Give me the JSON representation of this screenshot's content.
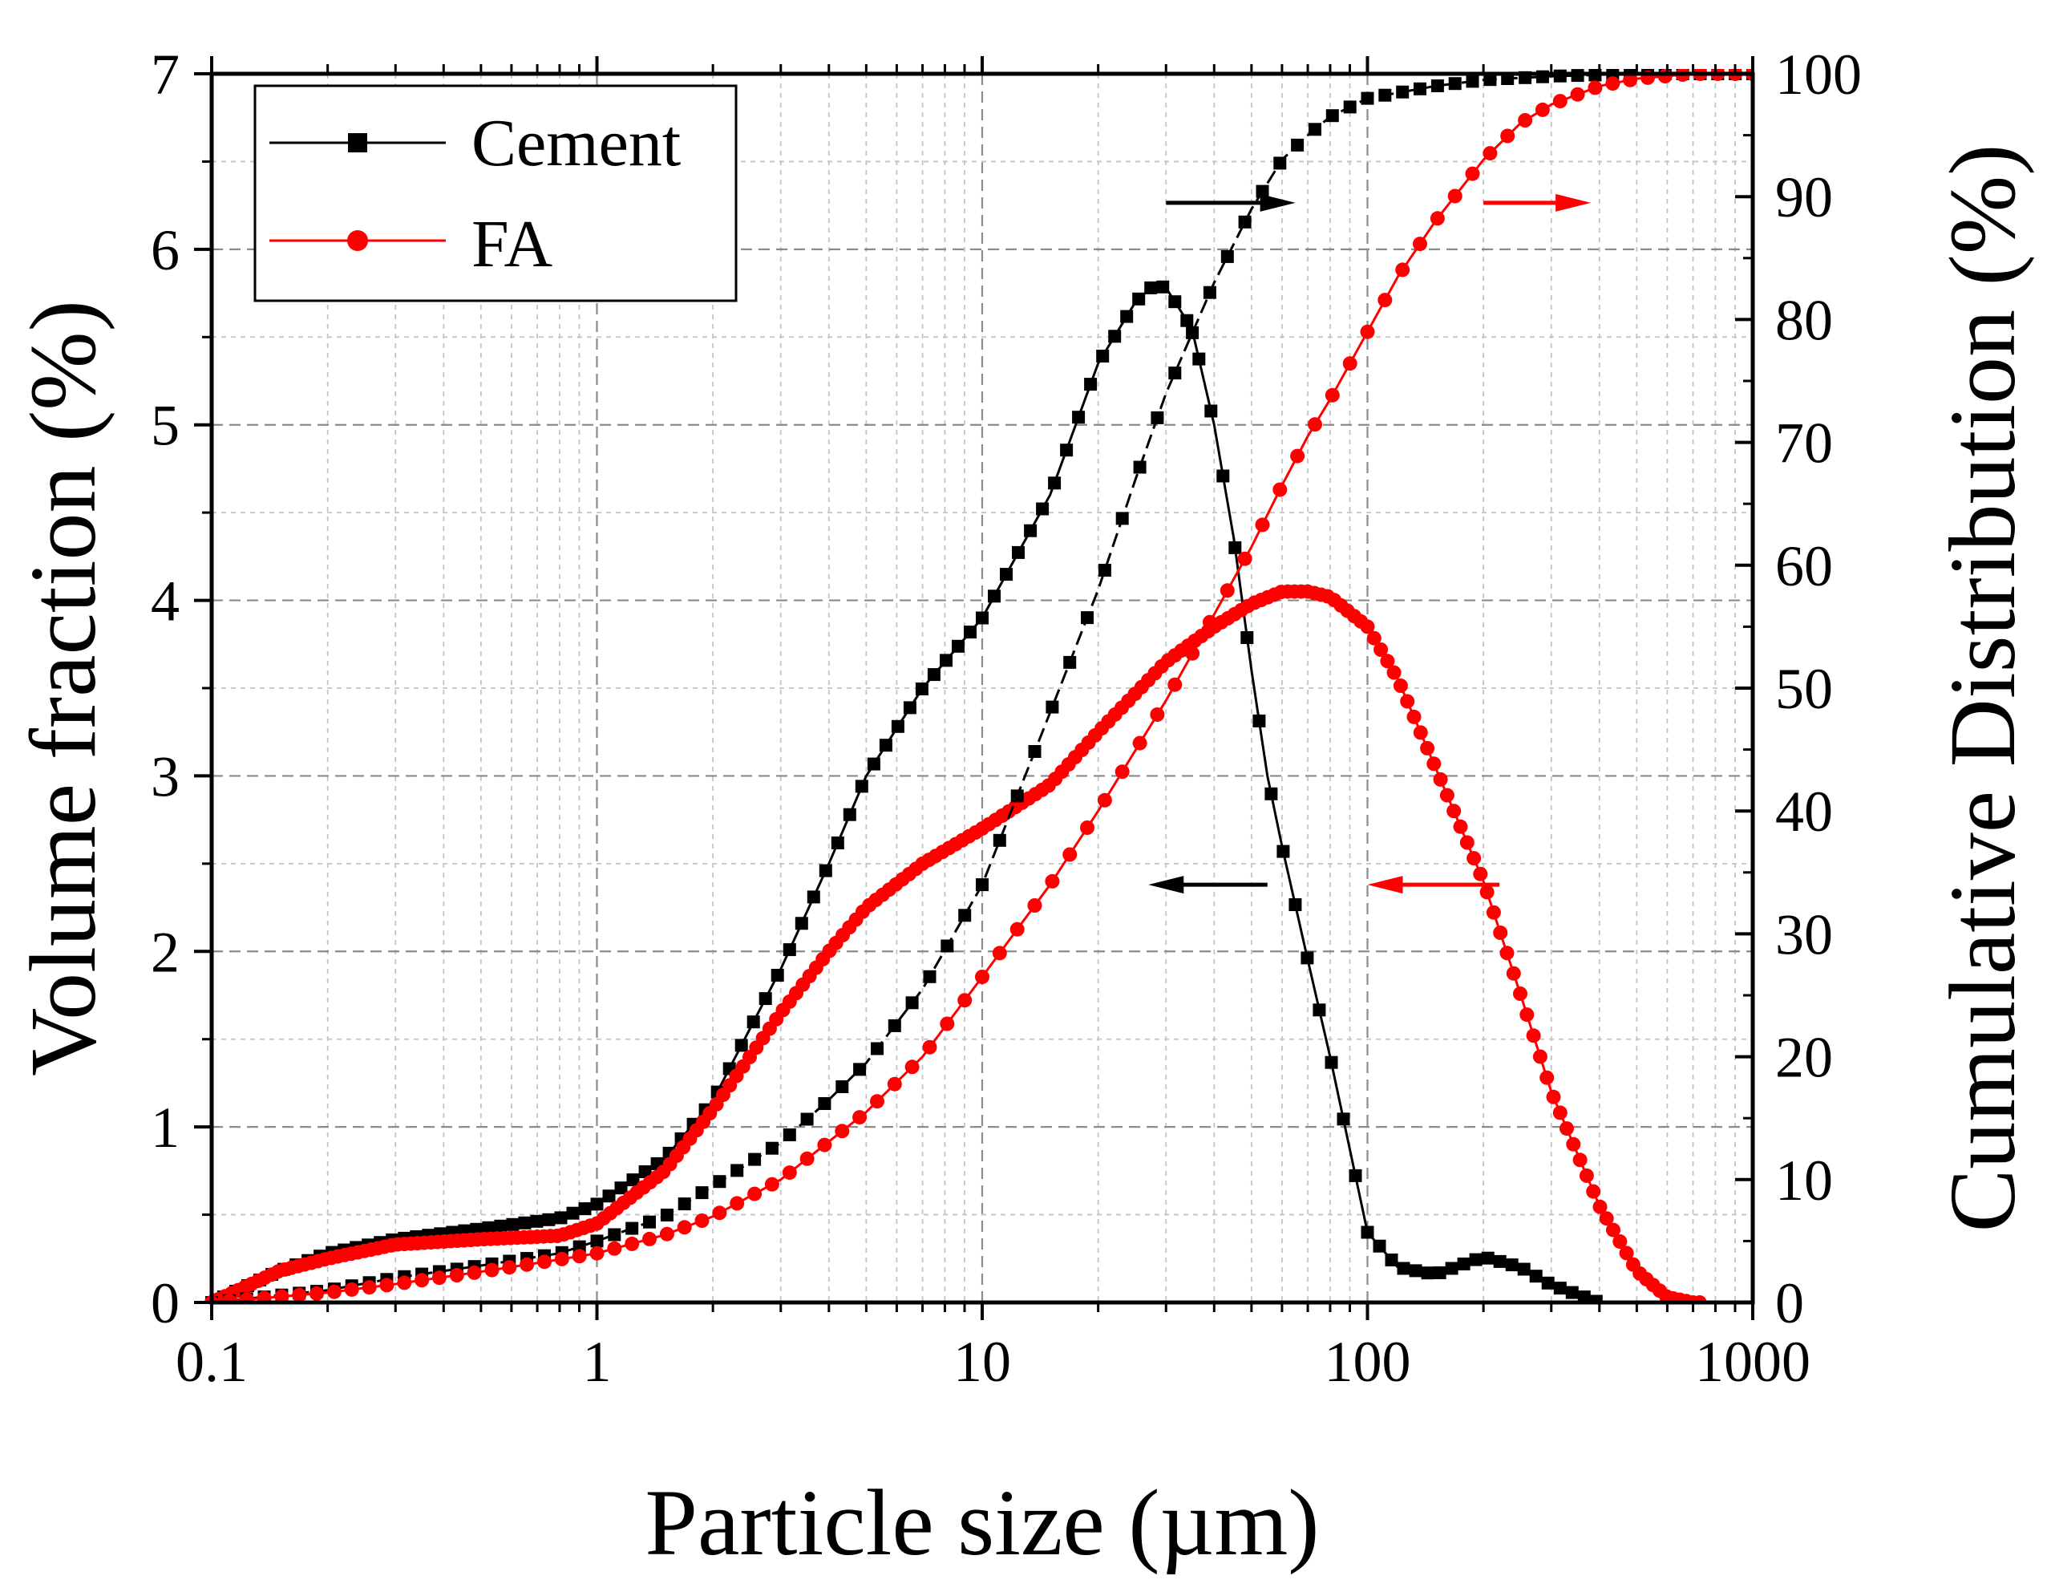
{
  "chart_data": {
    "type": "line",
    "xscale": "log",
    "xlim": [
      0.1,
      1000
    ],
    "x_ticks": [
      "0.1",
      "1",
      "10",
      "100",
      "1000"
    ],
    "xlabel": "Particle size (µm)",
    "y_left": {
      "label": "Volume fraction (%)",
      "lim": [
        0,
        7
      ],
      "ticks": [
        "0",
        "1",
        "2",
        "3",
        "4",
        "5",
        "6",
        "7"
      ]
    },
    "y_right": {
      "label": "Cumulative Distribution (%)",
      "lim": [
        0,
        100
      ],
      "ticks": [
        "0",
        "10",
        "20",
        "30",
        "40",
        "50",
        "60",
        "70",
        "80",
        "90",
        "100"
      ]
    },
    "grid": true,
    "legend": {
      "position": "top-left",
      "entries": [
        "Cement",
        "FA"
      ]
    },
    "colors": {
      "cement": "#000000",
      "fa": "#ff0000"
    },
    "series": [
      {
        "name": "Cement",
        "kind": "volume_fraction",
        "axis": "left",
        "marker": "square",
        "x": [
          0.1,
          0.15,
          0.2,
          0.3,
          0.5,
          0.8,
          1.0,
          1.5,
          2.0,
          3.0,
          4.0,
          5.0,
          7.0,
          10.0,
          15.0,
          20.0,
          25.0,
          28.0,
          30.0,
          35.0,
          40.0,
          45.0,
          50.0,
          55.0,
          60.0,
          70.0,
          80.0,
          100.0,
          120.0,
          150.0,
          200.0,
          250.0,
          300.0,
          400.0
        ],
        "y": [
          0.0,
          0.18,
          0.28,
          0.36,
          0.42,
          0.48,
          0.56,
          0.82,
          1.15,
          1.9,
          2.5,
          3.0,
          3.5,
          3.9,
          4.6,
          5.35,
          5.7,
          5.8,
          5.78,
          5.55,
          5.0,
          4.35,
          3.6,
          3.0,
          2.6,
          1.95,
          1.4,
          0.4,
          0.2,
          0.16,
          0.26,
          0.2,
          0.1,
          0.0
        ]
      },
      {
        "name": "FA",
        "kind": "volume_fraction",
        "axis": "left",
        "marker": "circle",
        "x": [
          0.1,
          0.15,
          0.2,
          0.3,
          0.5,
          0.8,
          1.0,
          1.5,
          2.0,
          3.0,
          4.0,
          5.0,
          7.0,
          10.0,
          15.0,
          20.0,
          30.0,
          40.0,
          50.0,
          60.0,
          70.0,
          80.0,
          100.0,
          120.0,
          150.0,
          200.0,
          250.0,
          300.0,
          400.0,
          500.0,
          600.0,
          700.0,
          750.0
        ],
        "y": [
          0.0,
          0.18,
          0.25,
          0.33,
          0.36,
          0.38,
          0.45,
          0.75,
          1.1,
          1.65,
          2.0,
          2.25,
          2.5,
          2.7,
          2.95,
          3.25,
          3.65,
          3.85,
          3.98,
          4.05,
          4.05,
          4.02,
          3.85,
          3.55,
          3.05,
          2.4,
          1.75,
          1.2,
          0.55,
          0.18,
          0.03,
          0.0,
          0.0
        ]
      },
      {
        "name": "Cement",
        "kind": "cumulative",
        "axis": "right",
        "marker": "square",
        "x": [
          0.1,
          0.2,
          0.3,
          0.5,
          0.8,
          1.0,
          1.5,
          2.0,
          3.0,
          4.0,
          5.0,
          7.0,
          10.0,
          15.0,
          20.0,
          25.0,
          30.0,
          40.0,
          50.0,
          60.0,
          70.0,
          80.0,
          100.0,
          150.0,
          200.0,
          300.0,
          500.0,
          1000.0
        ],
        "y": [
          0.0,
          1.0,
          2.0,
          3.0,
          4.0,
          5.0,
          7.0,
          9.5,
          13.0,
          16.5,
          19.5,
          25.5,
          34.0,
          48.0,
          58.0,
          67.0,
          74.0,
          83.0,
          89.0,
          93.0,
          95.0,
          96.5,
          98.0,
          99.0,
          99.5,
          99.8,
          100.0,
          100.0
        ]
      },
      {
        "name": "FA",
        "kind": "cumulative",
        "axis": "right",
        "marker": "circle",
        "x": [
          0.1,
          0.2,
          0.3,
          0.5,
          0.8,
          1.0,
          1.5,
          2.0,
          3.0,
          5.0,
          7.0,
          10.0,
          15.0,
          20.0,
          30.0,
          40.0,
          50.0,
          60.0,
          70.0,
          80.0,
          100.0,
          120.0,
          150.0,
          200.0,
          250.0,
          300.0,
          400.0,
          500.0,
          700.0,
          1000.0
        ],
        "y": [
          0.0,
          0.8,
          1.5,
          2.5,
          3.5,
          4.0,
          5.5,
          7.0,
          10.0,
          15.5,
          20.0,
          26.5,
          34.0,
          40.0,
          49.0,
          56.0,
          61.5,
          66.5,
          70.5,
          73.5,
          79.0,
          83.5,
          88.0,
          93.0,
          96.0,
          97.5,
          99.0,
          99.6,
          100.0,
          100.0
        ]
      }
    ],
    "annotations": [
      {
        "direction": "right",
        "color": "#000000",
        "x_from": 30,
        "x_to": 65,
        "axis": "right",
        "y": 89.5
      },
      {
        "direction": "right",
        "color": "#ff0000",
        "x_from": 200,
        "x_to": 380,
        "axis": "right",
        "y": 89.5
      },
      {
        "direction": "left",
        "color": "#000000",
        "x_from": 55,
        "x_to": 27,
        "axis": "left",
        "y": 2.38
      },
      {
        "direction": "left",
        "color": "#ff0000",
        "x_from": 220,
        "x_to": 100,
        "axis": "left",
        "y": 2.38
      }
    ]
  }
}
